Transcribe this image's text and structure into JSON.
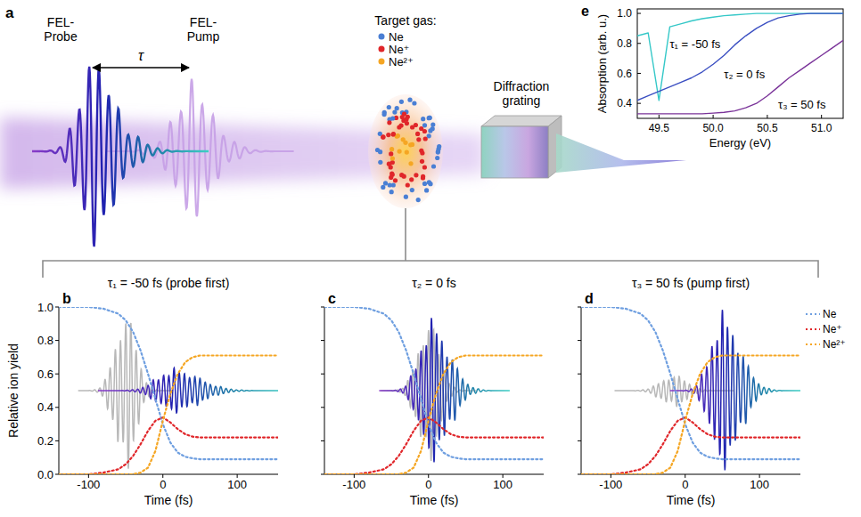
{
  "diagram": {
    "panel_label": "a",
    "probe_label": "FEL-Probe",
    "pump_label": "FEL-Pump",
    "delay_label": "τ",
    "target_title": "Target gas:",
    "species": [
      "Ne",
      "Ne⁺",
      "Ne²⁺"
    ],
    "grating_label": "Diffraction grating"
  },
  "chart_data": [
    {
      "type": "line",
      "panel_label": "e",
      "xlabel": "Energy (eV)",
      "ylabel": "Absorption (arb. u.)",
      "xlim": [
        49.3,
        51.2
      ],
      "xticks": [
        49.5,
        {
          "value": 50,
          "label": "50.0"
        },
        50.5,
        {
          "value": 51,
          "label": "51.0"
        }
      ],
      "ylim": [
        0.3,
        1.03
      ],
      "yticks": [
        0.4,
        0.6,
        0.8,
        {
          "value": 1,
          "label": "1.0"
        }
      ],
      "x": [
        49.3,
        49.4,
        49.5,
        49.6,
        49.7,
        49.8,
        49.9,
        50.0,
        50.1,
        50.2,
        50.3,
        50.4,
        50.5,
        50.6,
        50.7,
        50.8,
        50.9,
        51.0,
        51.1,
        51.2
      ],
      "series": [
        {
          "name": "τ₁ = -50 fs",
          "color": "#35c8c8",
          "values": [
            0.85,
            0.87,
            0.42,
            0.91,
            0.93,
            0.95,
            0.965,
            0.975,
            0.985,
            0.99,
            0.995,
            1,
            1,
            1,
            1,
            1,
            1,
            1,
            1,
            1
          ]
        },
        {
          "name": "τ₂ = 0 fs",
          "color": "#3b4fc2",
          "values": [
            0.42,
            0.45,
            0.48,
            0.51,
            0.54,
            0.57,
            0.61,
            0.66,
            0.72,
            0.79,
            0.85,
            0.9,
            0.94,
            0.97,
            0.985,
            0.995,
            1,
            1,
            1,
            1
          ]
        },
        {
          "name": "τ₃ = 50 fs",
          "color": "#7a3399",
          "values": [
            0.33,
            0.33,
            0.33,
            0.33,
            0.33,
            0.33,
            0.33,
            0.335,
            0.34,
            0.35,
            0.37,
            0.4,
            0.45,
            0.51,
            0.57,
            0.62,
            0.67,
            0.72,
            0.77,
            0.82
          ]
        }
      ]
    },
    {
      "type": "line",
      "panel_label": "b",
      "title": "τ₁ = -50 fs (probe first)",
      "xlabel": "Time (fs)",
      "ylabel": "Relative ion yield",
      "xlim": [
        -140,
        155
      ],
      "xticks": [
        -100,
        0,
        100
      ],
      "ylim": [
        0,
        1
      ],
      "yticks": [
        {
          "value": 0,
          "label": "0.0"
        },
        0.2,
        0.4,
        0.6,
        0.8,
        {
          "value": 1,
          "label": "1.0"
        }
      ],
      "x": [
        -140,
        -120,
        -100,
        -80,
        -60,
        -50,
        -40,
        -30,
        -20,
        -10,
        0,
        10,
        20,
        30,
        40,
        50,
        60,
        80,
        100,
        120,
        155
      ],
      "series": [
        {
          "name": "Ne",
          "color": "#6f9fe0",
          "line_style": "dotted",
          "values": [
            1,
            1,
            1,
            0.99,
            0.96,
            0.92,
            0.85,
            0.74,
            0.6,
            0.45,
            0.3,
            0.19,
            0.13,
            0.105,
            0.095,
            0.09,
            0.09,
            0.09,
            0.09,
            0.09,
            0.09
          ]
        },
        {
          "name": "Ne⁺",
          "color": "#e0262a",
          "line_style": "dotted",
          "values": [
            0,
            0,
            0,
            0.01,
            0.03,
            0.06,
            0.11,
            0.18,
            0.26,
            0.32,
            0.34,
            0.31,
            0.27,
            0.24,
            0.225,
            0.22,
            0.22,
            0.22,
            0.22,
            0.22,
            0.22
          ]
        },
        {
          "name": "Ne²⁺",
          "color": "#f5a623",
          "line_style": "dotted",
          "values": [
            0,
            0,
            0,
            0,
            0,
            0,
            0,
            0.01,
            0.04,
            0.14,
            0.32,
            0.48,
            0.6,
            0.67,
            0.7,
            0.71,
            0.71,
            0.71,
            0.71,
            0.71,
            0.71
          ]
        }
      ],
      "pulses": [
        {
          "center": -50,
          "duration": 20,
          "amplitude": 0.5,
          "baseline": 0.5,
          "color": "#b8b8b8"
        },
        {
          "center": 15,
          "duration": 32,
          "amplitude": 0.14,
          "baseline": 0.5
        }
      ]
    },
    {
      "type": "line",
      "panel_label": "c",
      "title": "τ₂ = 0 fs",
      "xlabel": "Time (fs)",
      "tick_labels": "x",
      "xlim": [
        -140,
        155
      ],
      "xticks": [
        -100,
        0,
        100
      ],
      "ylim": [
        0,
        1
      ],
      "yticks": [
        {
          "value": 0,
          "label": "0.0"
        },
        0.2,
        0.4,
        0.6,
        0.8,
        {
          "value": 1,
          "label": "1.0"
        }
      ],
      "x": [
        -140,
        -120,
        -100,
        -80,
        -60,
        -50,
        -40,
        -30,
        -20,
        -10,
        0,
        10,
        20,
        30,
        40,
        50,
        60,
        80,
        100,
        120,
        155
      ],
      "series": [
        {
          "name": "Ne",
          "color": "#6f9fe0",
          "line_style": "dotted",
          "values": [
            1,
            1,
            1,
            0.99,
            0.96,
            0.92,
            0.85,
            0.74,
            0.6,
            0.45,
            0.3,
            0.19,
            0.13,
            0.105,
            0.095,
            0.09,
            0.09,
            0.09,
            0.09,
            0.09,
            0.09
          ]
        },
        {
          "name": "Ne⁺",
          "color": "#e0262a",
          "line_style": "dotted",
          "values": [
            0,
            0,
            0,
            0.01,
            0.03,
            0.06,
            0.11,
            0.18,
            0.26,
            0.32,
            0.34,
            0.31,
            0.27,
            0.24,
            0.225,
            0.22,
            0.22,
            0.22,
            0.22,
            0.22,
            0.22
          ]
        },
        {
          "name": "Ne²⁺",
          "color": "#f5a623",
          "line_style": "dotted",
          "values": [
            0,
            0,
            0,
            0,
            0,
            0,
            0,
            0.01,
            0.04,
            0.14,
            0.32,
            0.48,
            0.6,
            0.67,
            0.7,
            0.71,
            0.71,
            0.71,
            0.71,
            0.71,
            0.71
          ]
        }
      ],
      "pulses": [
        {
          "center": 0,
          "duration": 20,
          "amplitude": 0.45,
          "baseline": 0.5,
          "color": "#b8b8b8"
        },
        {
          "center": 4,
          "duration": 22,
          "amplitude": 0.45,
          "baseline": 0.5
        }
      ]
    },
    {
      "type": "line",
      "panel_label": "d",
      "title": "τ₃ = 50 fs (pump first)",
      "xlabel": "Time (fs)",
      "tick_labels": "x",
      "legend": "right",
      "xlim": [
        -140,
        155
      ],
      "xticks": [
        -100,
        0,
        100
      ],
      "ylim": [
        0,
        1
      ],
      "yticks": [
        {
          "value": 0,
          "label": "0.0"
        },
        0.2,
        0.4,
        0.6,
        0.8,
        {
          "value": 1,
          "label": "1.0"
        }
      ],
      "x": [
        -140,
        -120,
        -100,
        -80,
        -60,
        -50,
        -40,
        -30,
        -20,
        -10,
        0,
        10,
        20,
        30,
        40,
        50,
        60,
        80,
        100,
        120,
        155
      ],
      "series": [
        {
          "name": "Ne",
          "color": "#6f9fe0",
          "line_style": "dotted",
          "values": [
            1,
            1,
            1,
            0.99,
            0.96,
            0.92,
            0.85,
            0.74,
            0.6,
            0.45,
            0.3,
            0.19,
            0.13,
            0.105,
            0.095,
            0.09,
            0.09,
            0.09,
            0.09,
            0.09,
            0.09
          ]
        },
        {
          "name": "Ne⁺",
          "color": "#e0262a",
          "line_style": "dotted",
          "values": [
            0,
            0,
            0,
            0.01,
            0.03,
            0.06,
            0.11,
            0.18,
            0.26,
            0.32,
            0.34,
            0.31,
            0.27,
            0.24,
            0.225,
            0.22,
            0.22,
            0.22,
            0.22,
            0.22,
            0.22
          ]
        },
        {
          "name": "Ne²⁺",
          "color": "#f5a623",
          "line_style": "dotted",
          "values": [
            0,
            0,
            0,
            0,
            0,
            0,
            0,
            0.01,
            0.04,
            0.14,
            0.32,
            0.48,
            0.6,
            0.67,
            0.7,
            0.71,
            0.71,
            0.71,
            0.71,
            0.71,
            0.71
          ]
        }
      ],
      "pulses": [
        {
          "center": -15,
          "duration": 25,
          "amplitude": 0.1,
          "baseline": 0.5,
          "color": "#b8b8b8"
        },
        {
          "center": 50,
          "duration": 22,
          "amplitude": 0.5,
          "baseline": 0.5
        }
      ]
    }
  ]
}
